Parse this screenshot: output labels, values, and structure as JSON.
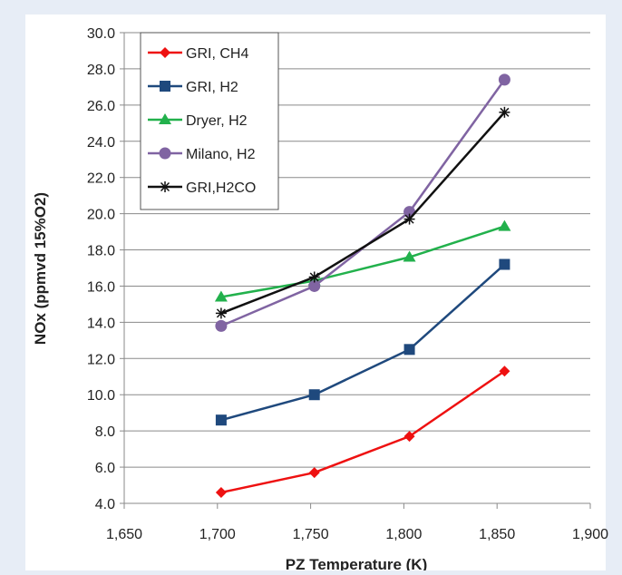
{
  "chart_data": {
    "type": "line",
    "title": "",
    "xlabel": "PZ Temperature (K)",
    "ylabel": "NOx (ppmvd 15%O2)",
    "xlim": [
      1650,
      1900
    ],
    "ylim": [
      4.0,
      30.0
    ],
    "x_ticks": [
      "1,650",
      "1,700",
      "1,750",
      "1,800",
      "1,850",
      "1,900"
    ],
    "y_ticks": [
      "4.0",
      "6.0",
      "8.0",
      "10.0",
      "12.0",
      "14.0",
      "16.0",
      "18.0",
      "20.0",
      "22.0",
      "24.0",
      "26.0",
      "28.0",
      "30.0"
    ],
    "grid": "horizontal",
    "legend_position": "top-left",
    "series": [
      {
        "name": "GRI, CH4",
        "color": "#ee1111",
        "marker": "diamond",
        "x": [
          1702,
          1752,
          1803,
          1854
        ],
        "y": [
          4.6,
          5.7,
          7.7,
          11.3
        ]
      },
      {
        "name": "GRI, H2",
        "color": "#1f497d",
        "marker": "square",
        "x": [
          1702,
          1752,
          1803,
          1854
        ],
        "y": [
          8.6,
          10.0,
          12.5,
          17.2
        ]
      },
      {
        "name": "Dryer, H2",
        "color": "#22b14c",
        "marker": "triangle",
        "x": [
          1702,
          1752,
          1803,
          1854
        ],
        "y": [
          15.4,
          16.3,
          17.6,
          19.3
        ]
      },
      {
        "name": "Milano, H2",
        "color": "#8064a2",
        "marker": "circle",
        "x": [
          1702,
          1752,
          1803,
          1854
        ],
        "y": [
          13.8,
          16.0,
          20.1,
          27.4
        ]
      },
      {
        "name": "GRI,H2CO",
        "color": "#111111",
        "marker": "star",
        "x": [
          1702,
          1752,
          1803,
          1854
        ],
        "y": [
          14.5,
          16.5,
          19.7,
          25.6
        ]
      }
    ]
  }
}
